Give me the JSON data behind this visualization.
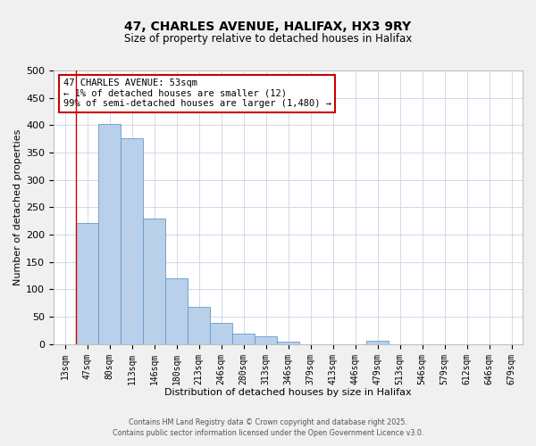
{
  "title": "47, CHARLES AVENUE, HALIFAX, HX3 9RY",
  "subtitle": "Size of property relative to detached houses in Halifax",
  "xlabel": "Distribution of detached houses by size in Halifax",
  "ylabel": "Number of detached properties",
  "bar_labels": [
    "13sqm",
    "47sqm",
    "80sqm",
    "113sqm",
    "146sqm",
    "180sqm",
    "213sqm",
    "246sqm",
    "280sqm",
    "313sqm",
    "346sqm",
    "379sqm",
    "413sqm",
    "446sqm",
    "479sqm",
    "513sqm",
    "546sqm",
    "579sqm",
    "612sqm",
    "646sqm",
    "679sqm"
  ],
  "bar_values": [
    0,
    222,
    403,
    376,
    230,
    120,
    68,
    39,
    20,
    15,
    5,
    0,
    0,
    0,
    7,
    0,
    0,
    0,
    0,
    0,
    0
  ],
  "bar_color": "#b8d0ea",
  "bar_edge_color": "#6699cc",
  "ylim": [
    0,
    500
  ],
  "yticks": [
    0,
    50,
    100,
    150,
    200,
    250,
    300,
    350,
    400,
    450,
    500
  ],
  "annotation_title": "47 CHARLES AVENUE: 53sqm",
  "annotation_line1": "← 1% of detached houses are smaller (12)",
  "annotation_line2": "99% of semi-detached houses are larger (1,480) →",
  "footer_line1": "Contains HM Land Registry data © Crown copyright and database right 2025.",
  "footer_line2": "Contains public sector information licensed under the Open Government Licence v3.0.",
  "bg_color": "#f0f0f0",
  "plot_bg_color": "#ffffff",
  "grid_color": "#c8d4e8",
  "annotation_box_color": "#ffffff",
  "annotation_box_edge": "#cc0000",
  "property_line_color": "#cc0000",
  "property_line_x": 0.5
}
